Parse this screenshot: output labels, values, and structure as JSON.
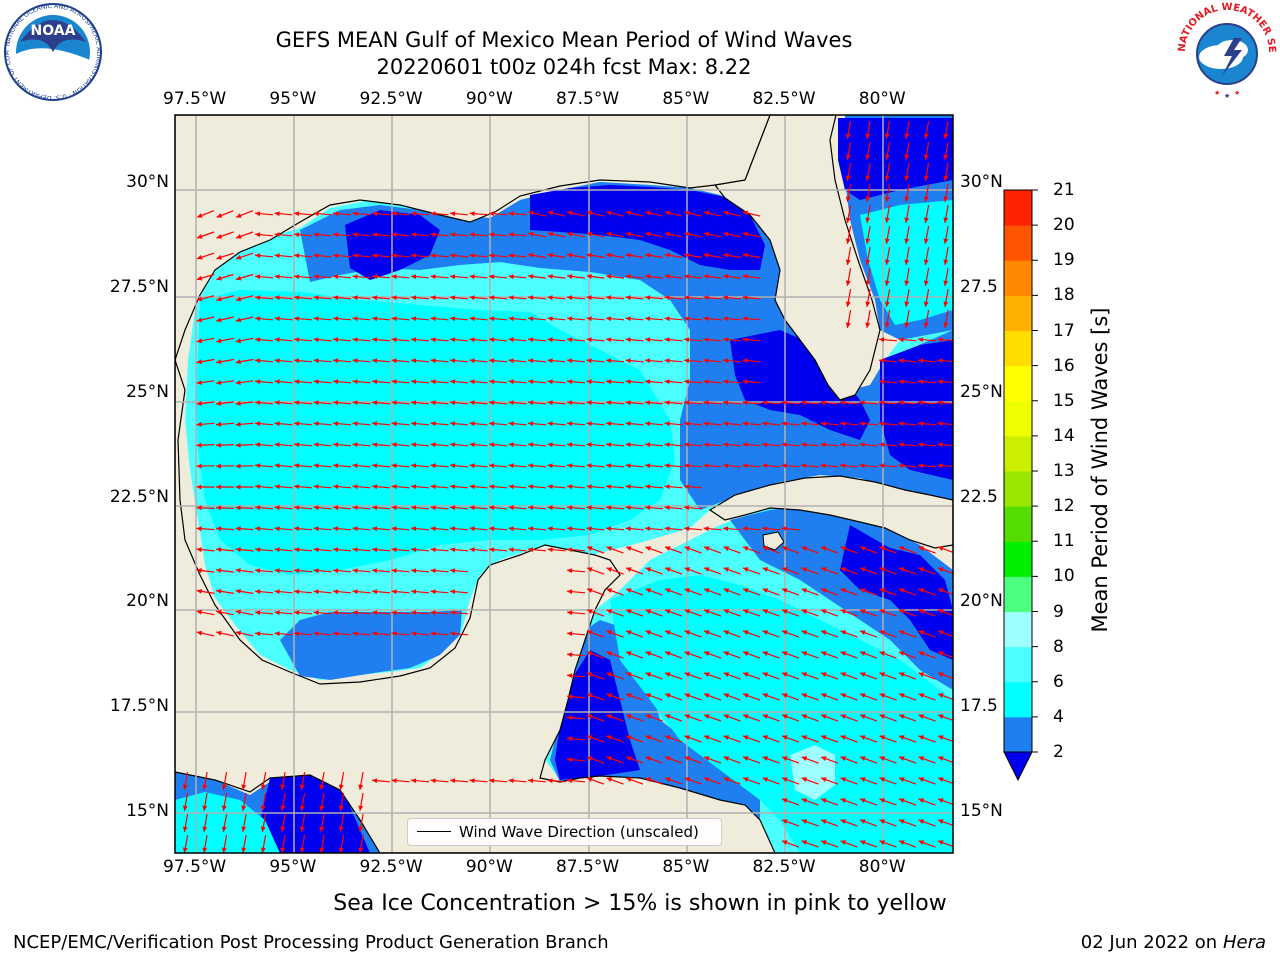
{
  "header": {
    "title_line1": "GEFS MEAN Gulf of Mexico Mean Period of Wind Waves",
    "title_line2": "20220601 t00z 024h fcst   Max: 8.22"
  },
  "logos": {
    "noaa_text": "NOAA",
    "noaa_ring_text": "NATIONAL OCEANIC AND ATMOSPHERIC ADMINISTRATION · U.S. DEPARTMENT OF COMMERCE",
    "nws_ring_text": "NATIONAL WEATHER SERVICE"
  },
  "map": {
    "lon_labels": [
      "97.5°W",
      "95°W",
      "92.5°W",
      "90°W",
      "87.5°W",
      "85°W",
      "82.5°W",
      "80°W"
    ],
    "lat_labels": [
      "30°N",
      "27.5°N",
      "25°N",
      "22.5°N",
      "20°N",
      "17.5°N",
      "15°N"
    ],
    "lat_labels_right": [
      "30°N",
      "27.5",
      "25°N",
      "22.5",
      "20°N",
      "17.5",
      "15°N"
    ],
    "lon_values": [
      -97.5,
      -95,
      -92.5,
      -90,
      -87.5,
      -85,
      -82.5,
      -80
    ],
    "lat_values": [
      30,
      27.5,
      25,
      22.5,
      20,
      17.5,
      15
    ],
    "extent": {
      "lon_min": -98,
      "lon_max": -78.2,
      "lat_min": 14,
      "lat_max": 31.6
    },
    "legend_label": "Wind Wave Direction (unscaled)",
    "colors": {
      "land": "#efecdc",
      "ocean_2_4": "#1f7ff1",
      "ocean_4_6": "#00ffff",
      "ocean_6_8": "#4cffff",
      "ocean_8_9": "#9fffff",
      "ocean_lt2": "#0000ee",
      "arrows": "#ff0000",
      "grid": "#b0b0b0"
    }
  },
  "colorbar": {
    "title": "Mean Period of Wind Waves [s]",
    "levels": [
      "2",
      "4",
      "6",
      "8",
      "9",
      "10",
      "11",
      "12",
      "13",
      "14",
      "15",
      "16",
      "17",
      "18",
      "19",
      "20",
      "21"
    ],
    "colors": [
      "#1f7ff1",
      "#00ffff",
      "#4cffff",
      "#9fffff",
      "#4dff80",
      "#00ee00",
      "#55dd00",
      "#99e600",
      "#ccee00",
      "#eeff00",
      "#ffff00",
      "#ffdd00",
      "#ffb000",
      "#ff8800",
      "#ff5500",
      "#ff2200"
    ],
    "under_color": "#0000ee"
  },
  "footer": {
    "sea_ice_note": "Sea Ice Concentration > 15% is shown in pink to yellow",
    "left": "NCEP/EMC/Verification Post Processing Product Generation Branch",
    "right_date": "02 Jun 2022 on",
    "right_host": "Hera"
  }
}
